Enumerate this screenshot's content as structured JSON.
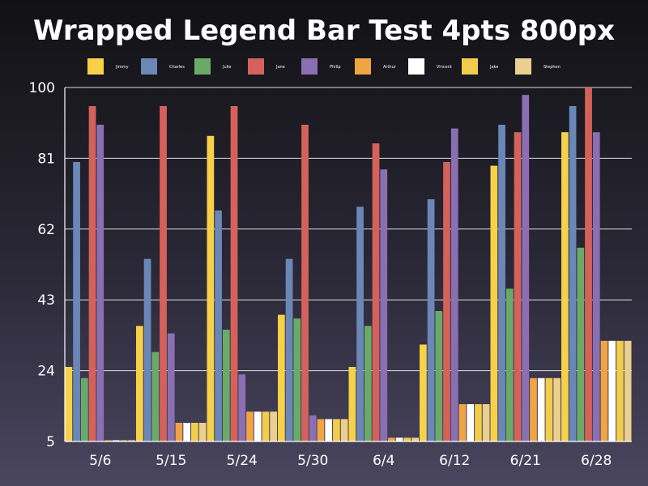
{
  "chart_data": {
    "type": "bar",
    "title": "Wrapped Legend Bar Test 4pts 800px",
    "xlabel": "",
    "ylabel": "",
    "ylim": [
      5,
      100
    ],
    "yticks": [
      "5",
      "24",
      "43",
      "62",
      "81",
      "100"
    ],
    "categories": [
      "5/6",
      "5/15",
      "5/24",
      "5/30",
      "6/4",
      "6/12",
      "6/21",
      "6/28"
    ],
    "grid": true,
    "legend_position": "top",
    "series": [
      {
        "name": "Jimmy",
        "color": "#f7d148",
        "values": [
          25,
          36,
          87,
          39,
          25,
          31,
          79,
          88
        ]
      },
      {
        "name": "Charles",
        "color": "#6b87b8",
        "values": [
          80,
          54,
          67,
          54,
          68,
          70,
          90,
          95
        ]
      },
      {
        "name": "Julie",
        "color": "#6aaa68",
        "values": [
          22,
          29,
          35,
          38,
          36,
          40,
          46,
          57
        ]
      },
      {
        "name": "Jane",
        "color": "#d5625a",
        "values": [
          95,
          95,
          95,
          90,
          85,
          80,
          88,
          100
        ]
      },
      {
        "name": "Philip",
        "color": "#8b6fb3",
        "values": [
          90,
          34,
          23,
          12,
          78,
          89,
          98,
          88
        ]
      },
      {
        "name": "Arthur",
        "color": "#f0a443",
        "values": [
          5,
          10,
          13,
          11,
          6,
          15,
          22,
          32
        ]
      },
      {
        "name": "Vincent",
        "color": "#ffffff",
        "values": [
          5,
          10,
          13,
          11,
          6,
          15,
          22,
          32
        ]
      },
      {
        "name": "Jake",
        "color": "#f2cc4c",
        "values": [
          5,
          10,
          13,
          11,
          6,
          15,
          22,
          32
        ]
      },
      {
        "name": "Stephen",
        "color": "#ebcf8f",
        "values": [
          5,
          10,
          13,
          11,
          6,
          15,
          22,
          32
        ]
      }
    ]
  }
}
